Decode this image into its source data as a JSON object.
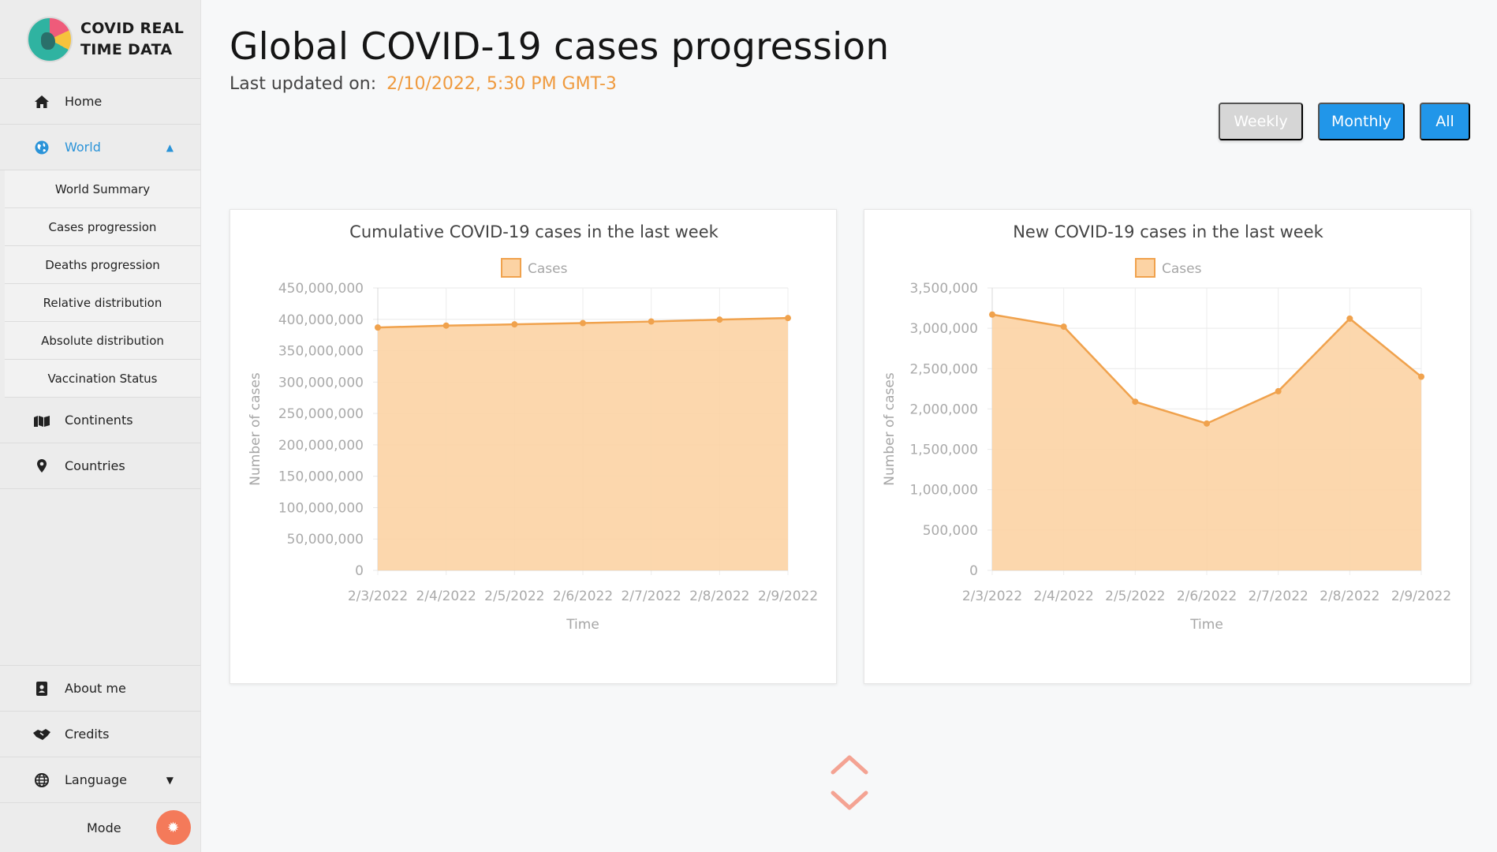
{
  "brand": {
    "line1": "COVID REAL",
    "line2": "TIME DATA"
  },
  "sidebar": {
    "items": [
      {
        "label": "Home",
        "icon": "home-icon"
      },
      {
        "label": "World",
        "icon": "globe-icon"
      }
    ],
    "world_sub": [
      {
        "label": "World Summary"
      },
      {
        "label": "Cases progression"
      },
      {
        "label": "Deaths progression"
      },
      {
        "label": "Relative distribution"
      },
      {
        "label": "Absolute distribution"
      },
      {
        "label": "Vaccination Status"
      }
    ],
    "after": [
      {
        "label": "Continents",
        "icon": "map-icon"
      },
      {
        "label": "Countries",
        "icon": "map-pin-icon"
      }
    ],
    "bottom": [
      {
        "label": "About me",
        "icon": "contact-card-icon"
      },
      {
        "label": "Credits",
        "icon": "handshake-icon"
      },
      {
        "label": "Language",
        "icon": "globe-icon"
      }
    ],
    "mode_label": "Mode"
  },
  "header": {
    "title": "Global COVID-19 cases progression",
    "updated_label": "Last updated on:",
    "updated_value": "2/10/2022, 5:30 PM GMT-3"
  },
  "period_buttons": {
    "weekly": "Weekly",
    "monthly": "Monthly",
    "all": "All"
  },
  "colors": {
    "accent": "#2196e9",
    "series_line": "#f0a24d",
    "series_fill": "#fcd3a4",
    "highlight": "#ef9a3e"
  },
  "chart_data": [
    {
      "type": "area",
      "title": "Cumulative COVID-19 cases  in the last week",
      "xlabel": "Time",
      "ylabel": "Number of cases",
      "categories": [
        "2/3/2022",
        "2/4/2022",
        "2/5/2022",
        "2/6/2022",
        "2/7/2022",
        "2/8/2022",
        "2/9/2022"
      ],
      "series": [
        {
          "name": "Cases",
          "values": [
            387000000,
            390000000,
            392000000,
            394000000,
            396500000,
            399500000,
            402000000
          ]
        }
      ],
      "ylim": [
        0,
        450000000
      ],
      "yticks": [
        0,
        50000000,
        100000000,
        150000000,
        200000000,
        250000000,
        300000000,
        350000000,
        400000000,
        450000000
      ],
      "legend": "top-center",
      "grid": true
    },
    {
      "type": "area",
      "title": "New COVID-19 cases  in the last week",
      "xlabel": "Time",
      "ylabel": "Number of cases",
      "categories": [
        "2/3/2022",
        "2/4/2022",
        "2/5/2022",
        "2/6/2022",
        "2/7/2022",
        "2/8/2022",
        "2/9/2022"
      ],
      "series": [
        {
          "name": "Cases",
          "values": [
            3170000,
            3020000,
            2090000,
            1820000,
            2220000,
            3120000,
            2400000
          ]
        }
      ],
      "ylim": [
        0,
        3500000
      ],
      "yticks": [
        0,
        500000,
        1000000,
        1500000,
        2000000,
        2500000,
        3000000,
        3500000
      ],
      "legend": "top-center",
      "grid": true
    }
  ]
}
